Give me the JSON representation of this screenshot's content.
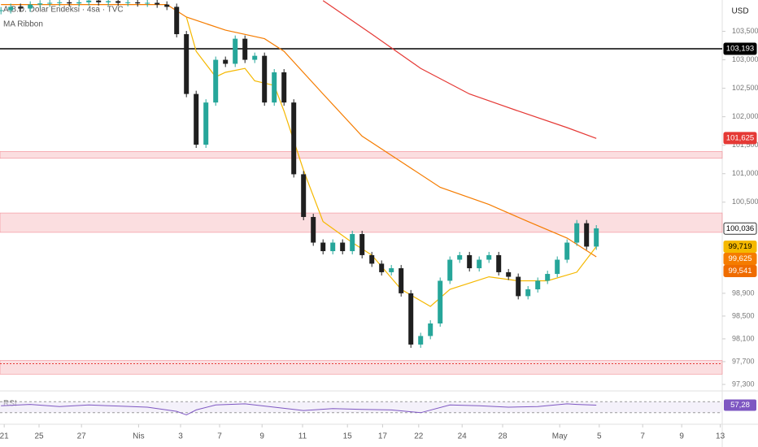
{
  "chart_data": {
    "type": "candlestick",
    "title": "A.B.D. Dolar Endeksi · 4sa · TVC",
    "indicator_name": "MA Ribbon",
    "currency": "USD",
    "rsi_name": "RSI",
    "up_color": "#26a69a",
    "down_color": "#1f1f1f",
    "closes": [
      103.87,
      103.93,
      103.9,
      103.97,
      103.99,
      104.0,
      104.01,
      103.99,
      104.01,
      104.04,
      104.01,
      104.03,
      104.0,
      104.01,
      103.99,
      104.0,
      103.97,
      103.93,
      103.45,
      102.4,
      101.51,
      102.25,
      103.0,
      102.93,
      103.37,
      103.0,
      103.07,
      102.25,
      102.78,
      102.25,
      100.99,
      100.24,
      99.79,
      99.64,
      99.79,
      99.64,
      99.94,
      99.57,
      99.42,
      99.27,
      99.34,
      98.9,
      98.0,
      98.15,
      98.37,
      99.12,
      99.49,
      99.57,
      99.34,
      99.49,
      99.57,
      99.27,
      99.19,
      98.85,
      98.97,
      99.12,
      99.24,
      99.49,
      99.79,
      100.13,
      99.72,
      100.04
    ],
    "xlim": [
      -0.1,
      73.9
    ],
    "xticks": [
      {
        "value": 0.33,
        "label": "21"
      },
      {
        "value": 3.9,
        "label": "25"
      },
      {
        "value": 8.25,
        "label": "27"
      },
      {
        "value": 14.1,
        "label": "Nis"
      },
      {
        "value": 18.4,
        "label": "3"
      },
      {
        "value": 22.4,
        "label": "7"
      },
      {
        "value": 26.75,
        "label": "9"
      },
      {
        "value": 30.9,
        "label": "11"
      },
      {
        "value": 35.5,
        "label": "15"
      },
      {
        "value": 39.1,
        "label": "17"
      },
      {
        "value": 42.8,
        "label": "22"
      },
      {
        "value": 47.25,
        "label": "24"
      },
      {
        "value": 51.4,
        "label": "28"
      },
      {
        "value": 57.25,
        "label": "May"
      },
      {
        "value": 61.3,
        "label": "5"
      },
      {
        "value": 65.75,
        "label": "7"
      },
      {
        "value": 69.75,
        "label": "9"
      },
      {
        "value": 73.7,
        "label": "13"
      }
    ],
    "ylim": [
      97.2,
      104.05
    ],
    "yticks": [
      {
        "value": 103.5,
        "label": "103,500"
      },
      {
        "value": 103.0,
        "label": "103,000"
      },
      {
        "value": 102.5,
        "label": "102,500"
      },
      {
        "value": 102.0,
        "label": "102,000"
      },
      {
        "value": 101.5,
        "label": "101,500"
      },
      {
        "value": 101.0,
        "label": "101,000"
      },
      {
        "value": 100.5,
        "label": "100,500"
      },
      {
        "value": 98.9,
        "label": "98,900"
      },
      {
        "value": 98.5,
        "label": "98,500"
      },
      {
        "value": 98.1,
        "label": "98,100"
      },
      {
        "value": 97.7,
        "label": "97,700"
      },
      {
        "value": 97.3,
        "label": "97,300"
      }
    ],
    "series": [
      {
        "color": "#e53935",
        "x": [
          33,
          38,
          43,
          48,
          53,
          58,
          61
        ],
        "values": [
          104.04,
          103.45,
          102.85,
          102.4,
          102.1,
          101.81,
          101.62
        ]
      },
      {
        "color": "#f57c00",
        "x": [
          0,
          17,
          19,
          23,
          27,
          29,
          33,
          37,
          41,
          45,
          50,
          54,
          58,
          61
        ],
        "values": [
          103.97,
          103.97,
          103.75,
          103.52,
          103.37,
          103.15,
          102.4,
          101.66,
          101.21,
          100.76,
          100.46,
          100.16,
          99.87,
          99.54
        ]
      },
      {
        "color": "#f5b800",
        "x": [
          19,
          20,
          22,
          23,
          25,
          26,
          28,
          29,
          31,
          33,
          36,
          38,
          41,
          44,
          46,
          50,
          53,
          56,
          59,
          61
        ],
        "values": [
          103.75,
          103.15,
          102.7,
          102.78,
          102.85,
          102.63,
          102.55,
          102.1,
          101.06,
          100.16,
          99.79,
          99.57,
          98.97,
          98.67,
          98.97,
          99.19,
          99.12,
          99.12,
          99.27,
          99.72
        ]
      }
    ],
    "hline": {
      "value": 103.193,
      "color": "#000000"
    },
    "zones": [
      [
        101.27,
        101.39
      ],
      [
        99.97,
        100.31
      ],
      [
        97.48,
        97.72
      ]
    ],
    "zone_color": "#f8c8cc",
    "price_labels": [
      {
        "value": 103.193,
        "label": "103,193",
        "color": "#000000"
      },
      {
        "value": 101.625,
        "label": "101,625",
        "color": "#e53935"
      },
      {
        "value": 100.036,
        "label": "100,036",
        "color": "#ffffff"
      },
      {
        "value": 99.719,
        "label": "99,719",
        "color": "#f5b800"
      },
      {
        "value": 99.625,
        "label": "99,625",
        "color": "#f57c00"
      },
      {
        "value": 99.541,
        "label": "99,541",
        "color": "#ef6c00"
      }
    ],
    "rsi": {
      "color": "#7e57c2",
      "ylim": [
        0,
        100
      ],
      "bands": [
        70,
        30
      ],
      "x": [
        0,
        3,
        6,
        9,
        12,
        15,
        18,
        19,
        20,
        22,
        25,
        28,
        31,
        34,
        37,
        40,
        43,
        46,
        49,
        52,
        55,
        58,
        59,
        61
      ],
      "values": [
        55,
        60,
        52,
        58,
        54,
        50,
        35,
        22,
        40,
        58,
        62,
        50,
        38,
        45,
        42,
        40,
        30,
        58,
        55,
        50,
        52,
        62,
        60,
        57.28
      ],
      "label": {
        "value": 57.28,
        "label": "57,28"
      }
    }
  }
}
